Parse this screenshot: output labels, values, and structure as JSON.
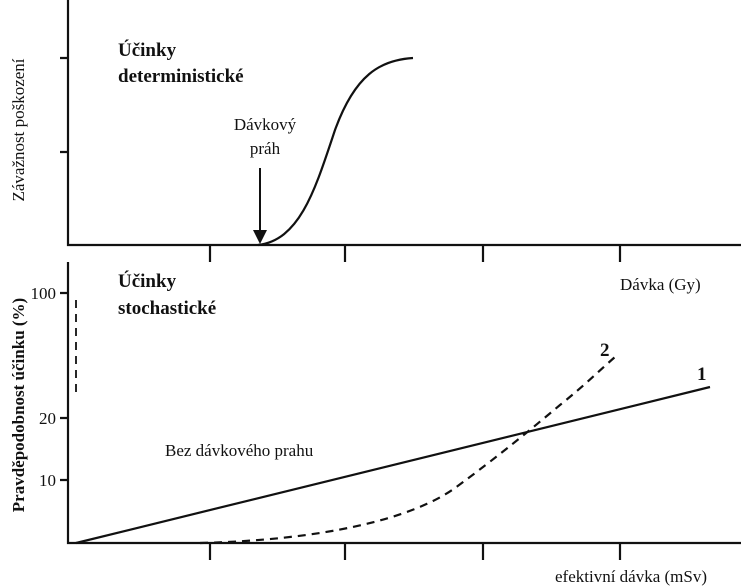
{
  "top": {
    "title_lines": [
      "Účinky",
      "deterministické"
    ],
    "threshold_lines": [
      "Dávkový",
      "práh"
    ],
    "y_label": "Závažnost poškození",
    "x_label": "Dávka (Gy)"
  },
  "bottom": {
    "title_lines": [
      "Účinky",
      "stochastické"
    ],
    "y_label": "Pravděpodobnost účinku (%)",
    "y_ticks": [
      "100",
      "20",
      "10"
    ],
    "line_note": "Bez dávkového prahu",
    "curve_labels": [
      "1",
      "2"
    ],
    "x_label": "efektivní dávka (mSv)"
  }
}
